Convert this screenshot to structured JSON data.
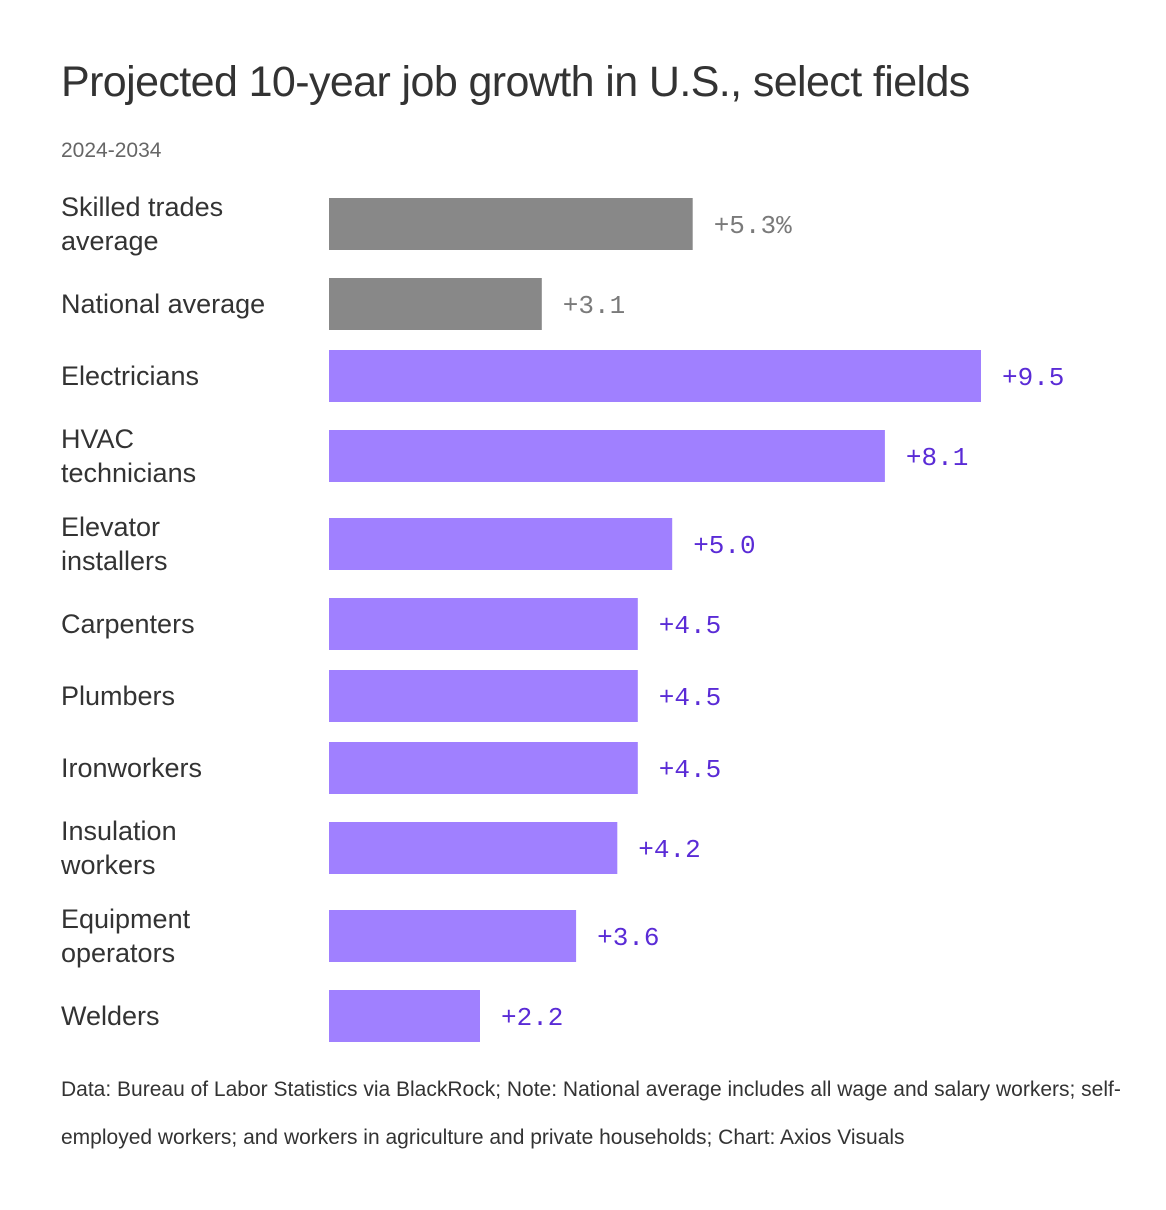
{
  "title": "Projected 10-year job growth in U.S., select fields",
  "subtitle": "2024-2034",
  "footnote": "Data: Bureau of Labor Statistics via BlackRock; Note: National average includes all wage and salary workers; self-employed workers; and workers in agriculture and private households; Chart: Axios Visuals",
  "colors": {
    "average_bar": "#888888",
    "average_label": "#7a7a7a",
    "trade_bar": "#a080ff",
    "trade_label": "#5a2bd6"
  },
  "chart_data": {
    "type": "bar",
    "orientation": "horizontal",
    "title": "Projected 10-year job growth in U.S., select fields",
    "subtitle": "2024-2034",
    "unit": "%",
    "xlim": [
      0,
      9.5
    ],
    "grid": false,
    "bars": [
      {
        "category": [
          "Skilled trades",
          "average"
        ],
        "value": 5.3,
        "label": "+5.3%",
        "group": "average"
      },
      {
        "category": [
          "National average"
        ],
        "value": 3.1,
        "label": "+3.1",
        "group": "average"
      },
      {
        "category": [
          "Electricians"
        ],
        "value": 9.5,
        "label": "+9.5",
        "group": "trade"
      },
      {
        "category": [
          "HVAC",
          "technicians"
        ],
        "value": 8.1,
        "label": "+8.1",
        "group": "trade"
      },
      {
        "category": [
          "Elevator",
          "installers"
        ],
        "value": 5.0,
        "label": "+5.0",
        "group": "trade"
      },
      {
        "category": [
          "Carpenters"
        ],
        "value": 4.5,
        "label": "+4.5",
        "group": "trade"
      },
      {
        "category": [
          "Plumbers"
        ],
        "value": 4.5,
        "label": "+4.5",
        "group": "trade"
      },
      {
        "category": [
          "Ironworkers"
        ],
        "value": 4.5,
        "label": "+4.5",
        "group": "trade"
      },
      {
        "category": [
          "Insulation",
          "workers"
        ],
        "value": 4.2,
        "label": "+4.2",
        "group": "trade"
      },
      {
        "category": [
          "Equipment",
          "operators"
        ],
        "value": 3.6,
        "label": "+3.6",
        "group": "trade"
      },
      {
        "category": [
          "Welders"
        ],
        "value": 2.2,
        "label": "+2.2",
        "group": "trade"
      }
    ]
  }
}
